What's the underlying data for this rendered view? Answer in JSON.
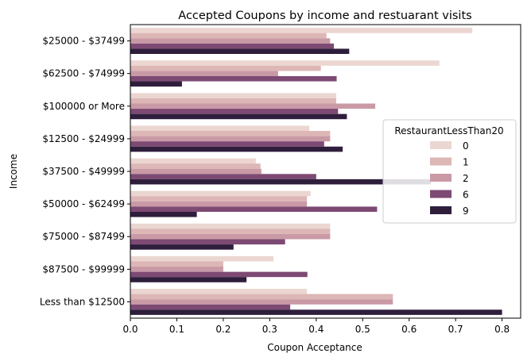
{
  "chart_data": {
    "type": "bar",
    "orientation": "horizontal",
    "title": "Accepted Coupons by income and restuarant visits",
    "xlabel": "Coupon Acceptance",
    "ylabel": "Income",
    "xlim": [
      0,
      0.84
    ],
    "xticks": [
      "0.0",
      "0.1",
      "0.2",
      "0.3",
      "0.4",
      "0.5",
      "0.6",
      "0.7",
      "0.8"
    ],
    "categories": [
      "$25000 - $37499",
      "$62500 - $74999",
      "$100000 or More",
      "$12500 - $24999",
      "$37500 - $49999",
      "$50000 - $62499",
      "$75000 - $87499",
      "$87500 - $99999",
      "Less than $12500"
    ],
    "legend": {
      "title": "RestaurantLessThan20",
      "placement": "right"
    },
    "grid": false,
    "series": [
      {
        "name": "0",
        "color": "#ebd6d1",
        "values": [
          0.736,
          0.665,
          0.443,
          0.385,
          0.27,
          0.388,
          0.43,
          0.308,
          0.38
        ]
      },
      {
        "name": "1",
        "color": "#ddb6b6",
        "values": [
          0.422,
          0.41,
          0.443,
          0.43,
          0.28,
          0.38,
          0.43,
          0.2,
          0.565
        ]
      },
      {
        "name": "2",
        "color": "#c99aa6",
        "values": [
          0.43,
          0.318,
          0.527,
          0.43,
          0.282,
          0.38,
          0.43,
          0.2,
          0.565
        ]
      },
      {
        "name": "6",
        "color": "#7d4a73",
        "values": [
          0.438,
          0.444,
          0.447,
          0.417,
          0.4,
          0.531,
          0.333,
          0.381,
          0.344
        ]
      },
      {
        "name": "9",
        "color": "#2e1e3c",
        "values": [
          0.471,
          0.111,
          0.466,
          0.457,
          0.647,
          0.143,
          0.222,
          0.25,
          0.8
        ]
      }
    ]
  }
}
